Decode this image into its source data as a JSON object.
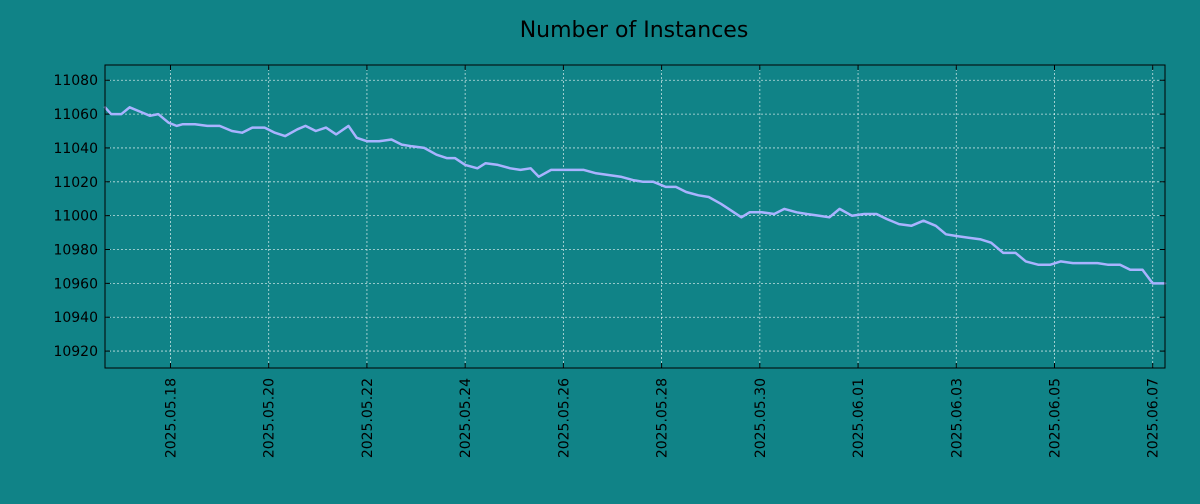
{
  "chart_data": {
    "type": "line",
    "title": "Number of Instances",
    "xlabel": "",
    "ylabel": "",
    "x_range": [
      "2025-05-16T16:00",
      "2025-06-07T06:00"
    ],
    "ylim": [
      10910,
      11089
    ],
    "y_ticks": [
      10920,
      10940,
      10960,
      10980,
      11000,
      11020,
      11040,
      11060,
      11080
    ],
    "x_ticks": [
      "2025.05.18",
      "2025.05.20",
      "2025.05.22",
      "2025.05.24",
      "2025.05.26",
      "2025.05.28",
      "2025.05.30",
      "2025.06.01",
      "2025.06.03",
      "2025.06.05",
      "2025.06.07"
    ],
    "grid": true,
    "colors": {
      "background": "#108387",
      "line": "#a9b3ff",
      "grid": "#ffffff",
      "frame": "#000000"
    },
    "series": [
      {
        "points": [
          [
            "2025-05-16T16:00",
            11064
          ],
          [
            "2025-05-16T19:00",
            11060
          ],
          [
            "2025-05-17T00:00",
            11060
          ],
          [
            "2025-05-17T04:00",
            11064
          ],
          [
            "2025-05-17T10:00",
            11061
          ],
          [
            "2025-05-17T14:00",
            11059
          ],
          [
            "2025-05-17T18:00",
            11060
          ],
          [
            "2025-05-17T23:00",
            11055
          ],
          [
            "2025-05-18T03:00",
            11053
          ],
          [
            "2025-05-18T06:00",
            11054
          ],
          [
            "2025-05-18T12:00",
            11054
          ],
          [
            "2025-05-18T18:00",
            11053
          ],
          [
            "2025-05-19T00:00",
            11053
          ],
          [
            "2025-05-19T06:00",
            11050
          ],
          [
            "2025-05-19T11:00",
            11049
          ],
          [
            "2025-05-19T16:00",
            11052
          ],
          [
            "2025-05-19T22:00",
            11052
          ],
          [
            "2025-05-20T03:00",
            11049
          ],
          [
            "2025-05-20T08:00",
            11047
          ],
          [
            "2025-05-20T14:00",
            11051
          ],
          [
            "2025-05-20T18:00",
            11053
          ],
          [
            "2025-05-20T23:00",
            11050
          ],
          [
            "2025-05-21T04:00",
            11052
          ],
          [
            "2025-05-21T09:00",
            11048
          ],
          [
            "2025-05-21T15:00",
            11053
          ],
          [
            "2025-05-21T19:00",
            11046
          ],
          [
            "2025-05-22T00:00",
            11044
          ],
          [
            "2025-05-22T06:00",
            11044
          ],
          [
            "2025-05-22T12:00",
            11045
          ],
          [
            "2025-05-22T17:00",
            11042
          ],
          [
            "2025-05-22T22:00",
            11041
          ],
          [
            "2025-05-23T04:00",
            11040
          ],
          [
            "2025-05-23T10:00",
            11036
          ],
          [
            "2025-05-23T15:00",
            11034
          ],
          [
            "2025-05-23T19:00",
            11034
          ],
          [
            "2025-05-24T00:00",
            11030
          ],
          [
            "2025-05-24T06:00",
            11028
          ],
          [
            "2025-05-24T10:00",
            11031
          ],
          [
            "2025-05-24T16:00",
            11030
          ],
          [
            "2025-05-24T22:00",
            11028
          ],
          [
            "2025-05-25T03:00",
            11027
          ],
          [
            "2025-05-25T08:00",
            11028
          ],
          [
            "2025-05-25T12:00",
            11023
          ],
          [
            "2025-05-25T18:00",
            11027
          ],
          [
            "2025-05-26T00:00",
            11027
          ],
          [
            "2025-05-26T05:00",
            11027
          ],
          [
            "2025-05-26T10:00",
            11027
          ],
          [
            "2025-05-26T16:00",
            11025
          ],
          [
            "2025-05-26T22:00",
            11024
          ],
          [
            "2025-05-27T04:00",
            11023
          ],
          [
            "2025-05-27T10:00",
            11021
          ],
          [
            "2025-05-27T15:00",
            11020
          ],
          [
            "2025-05-27T20:00",
            11020
          ],
          [
            "2025-05-28T02:00",
            11017
          ],
          [
            "2025-05-28T07:00",
            11017
          ],
          [
            "2025-05-28T12:00",
            11014
          ],
          [
            "2025-05-28T18:00",
            11012
          ],
          [
            "2025-05-28T23:00",
            11011
          ],
          [
            "2025-05-29T05:00",
            11007
          ],
          [
            "2025-05-29T10:00",
            11003
          ],
          [
            "2025-05-29T15:00",
            10999
          ],
          [
            "2025-05-29T19:00",
            11002
          ],
          [
            "2025-05-30T01:00",
            11002
          ],
          [
            "2025-05-30T07:00",
            11001
          ],
          [
            "2025-05-30T12:00",
            11004
          ],
          [
            "2025-05-30T18:00",
            11002
          ],
          [
            "2025-05-30T23:00",
            11001
          ],
          [
            "2025-05-31T05:00",
            11000
          ],
          [
            "2025-05-31T10:00",
            10999
          ],
          [
            "2025-05-31T15:00",
            11004
          ],
          [
            "2025-05-31T21:00",
            11000
          ],
          [
            "2025-06-01T03:00",
            11001
          ],
          [
            "2025-06-01T09:00",
            11001
          ],
          [
            "2025-06-01T14:00",
            10998
          ],
          [
            "2025-06-01T20:00",
            10995
          ],
          [
            "2025-06-02T02:00",
            10994
          ],
          [
            "2025-06-02T08:00",
            10997
          ],
          [
            "2025-06-02T14:00",
            10994
          ],
          [
            "2025-06-02T19:00",
            10989
          ],
          [
            "2025-06-03T00:00",
            10988
          ],
          [
            "2025-06-03T06:00",
            10987
          ],
          [
            "2025-06-03T12:00",
            10986
          ],
          [
            "2025-06-03T17:00",
            10984
          ],
          [
            "2025-06-03T23:00",
            10978
          ],
          [
            "2025-06-04T05:00",
            10978
          ],
          [
            "2025-06-04T10:00",
            10973
          ],
          [
            "2025-06-04T16:00",
            10971
          ],
          [
            "2025-06-04T22:00",
            10971
          ],
          [
            "2025-06-05T03:00",
            10973
          ],
          [
            "2025-06-05T09:00",
            10972
          ],
          [
            "2025-06-05T15:00",
            10972
          ],
          [
            "2025-06-05T21:00",
            10972
          ],
          [
            "2025-06-06T02:00",
            10971
          ],
          [
            "2025-06-06T08:00",
            10971
          ],
          [
            "2025-06-06T13:00",
            10968
          ],
          [
            "2025-06-06T19:00",
            10968
          ],
          [
            "2025-06-07T00:00",
            10960
          ],
          [
            "2025-06-07T06:00",
            10960
          ]
        ]
      }
    ]
  }
}
